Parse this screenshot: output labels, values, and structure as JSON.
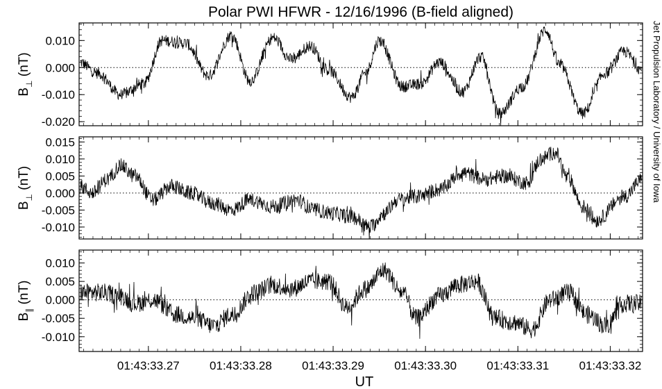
{
  "title": "Polar PWI HFWR - 12/16/1996 (B-field aligned)",
  "credit": "Jet Propulsion Laboratory / University of Iowa",
  "colors": {
    "trace": "#000000",
    "zero_line": "#000000",
    "background": "#ffffff"
  },
  "chart_data": [
    {
      "type": "line",
      "ylabel_main": "B",
      "ylabel_sub": "⊥",
      "ylabel_unit": " (nT)",
      "xlim": [
        33.2625,
        33.3235
      ],
      "ylim": [
        -0.0215,
        0.0165
      ],
      "yticks": [
        0.01,
        0.0,
        -0.01,
        -0.02
      ],
      "ytick_labels": [
        "0.010",
        "0.000",
        "-0.010",
        "-0.020"
      ],
      "zero_line": true,
      "noise_amplitude": 0.0022,
      "series": [
        {
          "x": [
            33.2625,
            33.2645,
            33.267,
            33.2695,
            33.2715,
            33.274,
            33.2765,
            33.279,
            33.281,
            33.2835,
            33.2855,
            33.2875,
            33.2895,
            33.292,
            33.2935,
            33.295,
            33.2975,
            33.2995,
            33.3015,
            33.304,
            33.306,
            33.308,
            33.3105,
            33.313,
            33.3145,
            33.317,
            33.3195,
            33.3215,
            33.3235
          ],
          "values": [
            0.002,
            -0.002,
            -0.01,
            -0.006,
            0.01,
            0.009,
            -0.003,
            0.012,
            -0.005,
            0.011,
            0.003,
            0.008,
            -0.001,
            -0.011,
            -0.002,
            0.01,
            -0.007,
            -0.006,
            0.002,
            -0.009,
            0.004,
            -0.017,
            -0.007,
            0.014,
            0.001,
            -0.017,
            -0.002,
            0.006,
            -0.001
          ]
        }
      ]
    },
    {
      "type": "line",
      "ylabel_main": "B",
      "ylabel_sub": "⊥",
      "ylabel_unit": " (nT)",
      "xlim": [
        33.2625,
        33.3235
      ],
      "ylim": [
        -0.0135,
        0.0165
      ],
      "yticks": [
        0.015,
        0.01,
        0.005,
        0.0,
        -0.005,
        -0.01
      ],
      "ytick_labels": [
        "0.015",
        "0.010",
        "0.005",
        "0.000",
        "-0.005",
        "-0.010"
      ],
      "zero_line": true,
      "noise_amplitude": 0.0022,
      "series": [
        {
          "x": [
            33.2625,
            33.264,
            33.2655,
            33.267,
            33.2685,
            33.2705,
            33.2725,
            33.2745,
            33.277,
            33.279,
            33.281,
            33.2835,
            33.286,
            33.288,
            33.29,
            33.292,
            33.294,
            33.2955,
            33.297,
            33.299,
            33.3015,
            33.304,
            33.3065,
            33.3085,
            33.311,
            33.3125,
            33.314,
            33.3155,
            33.317,
            33.3185,
            33.3215,
            33.3235
          ],
          "values": [
            0.002,
            0.0,
            0.004,
            0.008,
            0.005,
            -0.002,
            0.002,
            0.0,
            -0.003,
            -0.005,
            -0.002,
            -0.004,
            -0.002,
            -0.005,
            -0.006,
            -0.007,
            -0.01,
            -0.006,
            -0.002,
            -0.001,
            0.001,
            0.006,
            0.004,
            0.005,
            0.003,
            0.01,
            0.012,
            0.004,
            -0.004,
            -0.008,
            -0.001,
            0.004
          ]
        }
      ]
    },
    {
      "type": "line",
      "ylabel_main": "B",
      "ylabel_sub": "∥",
      "ylabel_unit": " (nT)",
      "xlim": [
        33.2625,
        33.3235
      ],
      "ylim": [
        -0.014,
        0.0135
      ],
      "yticks": [
        0.01,
        0.005,
        0.0,
        -0.005,
        -0.01
      ],
      "ytick_labels": [
        "0.010",
        "0.005",
        "0.000",
        "-0.005",
        "-0.010"
      ],
      "zero_line": true,
      "noise_amplitude": 0.0025,
      "series": [
        {
          "x": [
            33.2625,
            33.265,
            33.267,
            33.2685,
            33.2705,
            33.273,
            33.275,
            33.277,
            33.279,
            33.2815,
            33.2835,
            33.2855,
            33.2875,
            33.2895,
            33.2915,
            33.2935,
            33.2955,
            33.2975,
            33.299,
            33.3015,
            33.3035,
            33.3055,
            33.3075,
            33.3095,
            33.3115,
            33.3135,
            33.3155,
            33.3175,
            33.3195,
            33.3215,
            33.3235
          ],
          "values": [
            0.002,
            0.002,
            0.001,
            -0.001,
            0.0,
            -0.004,
            -0.005,
            -0.007,
            -0.004,
            0.002,
            0.004,
            0.003,
            0.005,
            0.005,
            -0.002,
            0.003,
            0.008,
            0.002,
            -0.005,
            0.001,
            0.004,
            0.005,
            -0.005,
            -0.006,
            -0.008,
            0.0,
            0.002,
            -0.004,
            -0.007,
            -0.001,
            -0.001
          ]
        }
      ]
    }
  ],
  "x_axis": {
    "label": "UT",
    "ticks": [
      33.27,
      33.28,
      33.29,
      33.3,
      33.31,
      33.32
    ],
    "tick_labels": [
      "01:43:33.27",
      "01:43:33.28",
      "01:43:33.29",
      "01:43:33.30",
      "01:43:33.31",
      "01:43:33.32"
    ]
  }
}
